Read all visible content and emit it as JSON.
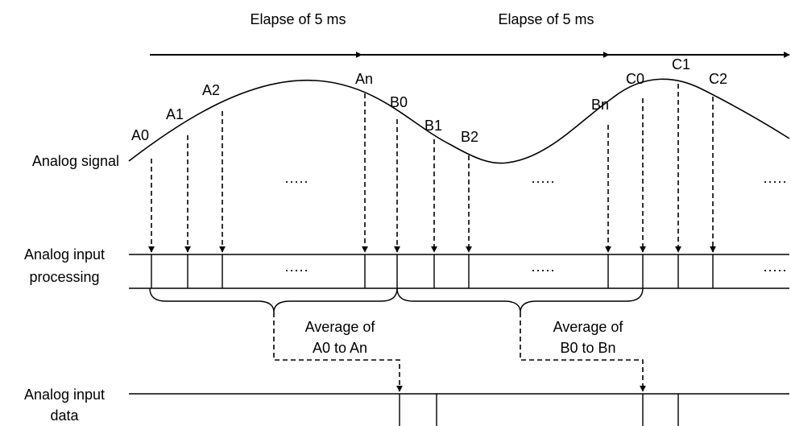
{
  "timing": {
    "elapse_1": "Elapse of 5 ms",
    "elapse_2": "Elapse of 5 ms"
  },
  "row_labels": {
    "analog_signal": "Analog signal",
    "processing_line1": "Analog input",
    "processing_line2": "processing",
    "data_line1": "Analog input",
    "data_line2": "data"
  },
  "samples": {
    "a0": "A0",
    "a1": "A1",
    "a2": "A2",
    "an": "An",
    "b0": "B0",
    "b1": "B1",
    "b2": "B2",
    "bn": "Bn",
    "c0": "C0",
    "c1": "C1",
    "c2": "C2"
  },
  "ellipsis": "·····",
  "averages": {
    "first_line1": "Average of",
    "first_line2": "A0 to An",
    "second_line1": "Average of",
    "second_line2": "B0 to Bn"
  }
}
